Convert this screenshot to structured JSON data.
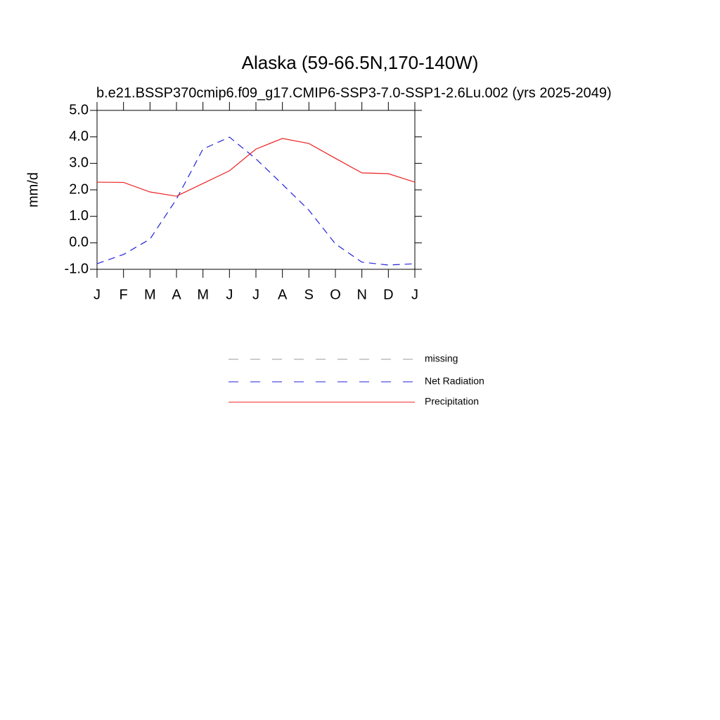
{
  "chart_data": {
    "type": "line",
    "title": "Alaska (59-66.5N,170-140W)",
    "subtitle": "b.e21.BSSP370cmip6.f09_g17.CMIP6-SSP3-7.0-SSP1-2.6Lu.002 (yrs 2025-2049)",
    "ylabel": "mm/d",
    "categories": [
      "J",
      "F",
      "M",
      "A",
      "M",
      "J",
      "J",
      "A",
      "S",
      "O",
      "N",
      "D",
      "J"
    ],
    "ylim": [
      -1,
      5
    ],
    "yticks": [
      {
        "value": -1,
        "label": "-1.0"
      },
      {
        "value": 0,
        "label": "0.0"
      },
      {
        "value": 1,
        "label": "1.0"
      },
      {
        "value": 2,
        "label": "2.0"
      },
      {
        "value": 3,
        "label": "3.0"
      },
      {
        "value": 4,
        "label": "4.0"
      },
      {
        "value": 5,
        "label": "5.0"
      }
    ],
    "series": [
      {
        "name": "missing",
        "color": "#999999",
        "dashed": true,
        "values": [
          null,
          null,
          null,
          null,
          null,
          null,
          null,
          null,
          null,
          null,
          null,
          null,
          null
        ]
      },
      {
        "name": "Net Radiation",
        "color": "#2222dd",
        "dashed": true,
        "values": [
          -0.79,
          -0.44,
          0.14,
          1.65,
          3.54,
          3.99,
          3.17,
          2.21,
          1.23,
          -0.04,
          -0.73,
          -0.84,
          -0.79
        ]
      },
      {
        "name": "Precipitation",
        "color": "#ee2222",
        "dashed": false,
        "values": [
          2.29,
          2.28,
          1.92,
          1.76,
          2.24,
          2.72,
          3.54,
          3.94,
          3.75,
          3.19,
          2.64,
          2.61,
          2.29
        ]
      }
    ]
  }
}
